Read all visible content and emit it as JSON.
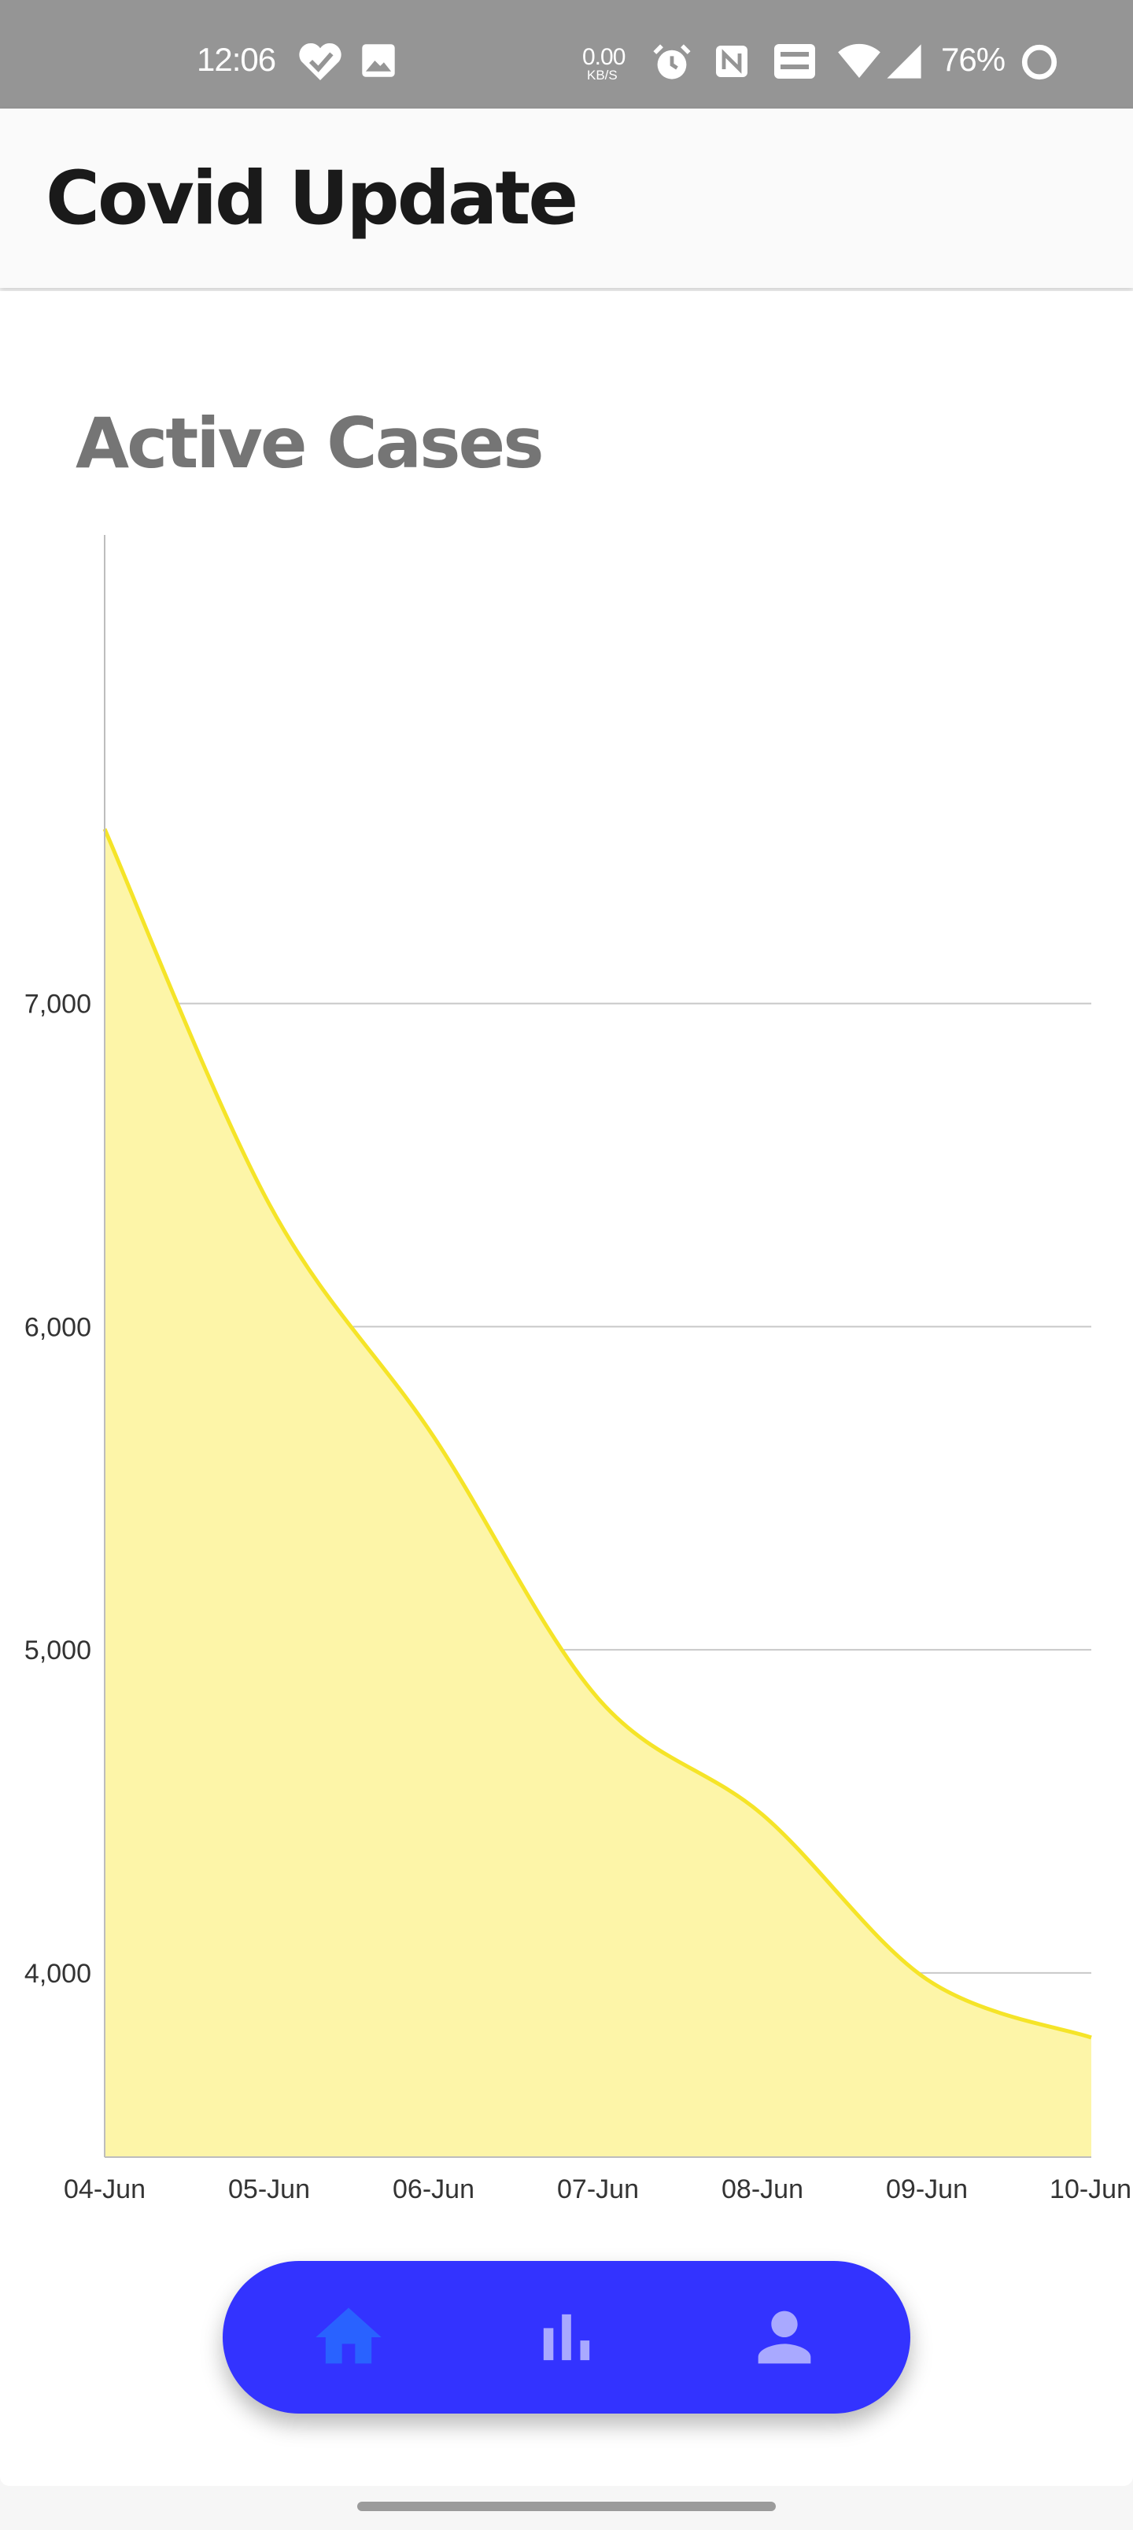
{
  "status_bar": {
    "time": "12:06",
    "net_speed_value": "0.00",
    "net_speed_unit": "KB/S",
    "battery_percent": "76%"
  },
  "app_bar": {
    "title": "Covid Update"
  },
  "chart_data": {
    "type": "area",
    "title": "Active Cases",
    "xlabel": "",
    "ylabel": "",
    "categories": [
      "04-Jun",
      "05-Jun",
      "06-Jun",
      "07-Jun",
      "08-Jun",
      "09-Jun",
      "10-Jun"
    ],
    "values": [
      7540,
      6380,
      5660,
      4850,
      4490,
      3980,
      3800
    ],
    "ylim": [
      3430,
      8450
    ],
    "yticks": [
      4000,
      5000,
      6000,
      7000
    ],
    "ytick_labels": [
      "4,000",
      "5,000",
      "6,000",
      "7,000"
    ],
    "grid": true,
    "legend": "none",
    "line_color": "#f5e428",
    "fill_color": "#fdf5a8"
  },
  "bottom_nav": {
    "items": [
      {
        "name": "home",
        "icon": "home-icon",
        "active": true
      },
      {
        "name": "stats",
        "icon": "bar-chart-icon",
        "active": false
      },
      {
        "name": "profile",
        "icon": "person-icon",
        "active": false
      }
    ],
    "background_color": "#3333ff",
    "active_color": "#2962ff",
    "inactive_color": "#a9a9ff"
  }
}
